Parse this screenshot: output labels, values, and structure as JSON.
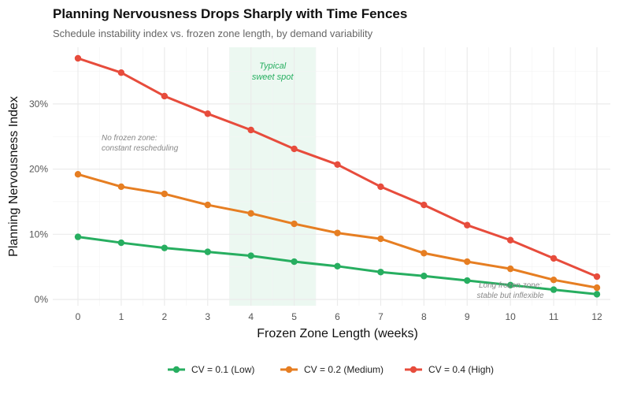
{
  "chart_data": {
    "type": "line",
    "title": "Planning Nervousness Drops Sharply with Time Fences",
    "subtitle": "Schedule instability index vs. frozen zone length, by demand variability",
    "xlabel": "Frozen Zone Length (weeks)",
    "ylabel": "Planning Nervousness Index",
    "x": [
      0,
      1,
      2,
      3,
      4,
      5,
      6,
      7,
      8,
      9,
      10,
      11,
      12
    ],
    "xlim": [
      0,
      12
    ],
    "ylim": [
      0,
      38
    ],
    "yticks": [
      0,
      10,
      20,
      30
    ],
    "ytick_labels": [
      "0%",
      "10%",
      "20%",
      "30%"
    ],
    "xtick_labels": [
      "0",
      "1",
      "2",
      "3",
      "4",
      "5",
      "6",
      "7",
      "8",
      "9",
      "10",
      "11",
      "12"
    ],
    "grid": true,
    "legend_position": "bottom",
    "series": [
      {
        "name": "CV = 0.1 (Low)",
        "color": "#27ae60",
        "values": [
          9.6,
          8.7,
          7.9,
          7.3,
          6.7,
          5.8,
          5.1,
          4.2,
          3.6,
          2.9,
          2.2,
          1.5,
          0.8
        ]
      },
      {
        "name": "CV = 0.2 (Medium)",
        "color": "#e67e22",
        "values": [
          19.2,
          17.3,
          16.2,
          14.5,
          13.2,
          11.6,
          10.2,
          9.3,
          7.1,
          5.8,
          4.7,
          3.0,
          1.8
        ]
      },
      {
        "name": "CV = 0.4 (High)",
        "color": "#e74c3c",
        "values": [
          37.0,
          34.8,
          31.2,
          28.5,
          26.0,
          23.1,
          20.7,
          17.3,
          14.5,
          11.4,
          9.1,
          6.3,
          3.5
        ]
      }
    ],
    "shaded_region": {
      "x_range": [
        3.5,
        5.5
      ],
      "color": "#27ae60",
      "label_line1": "Typical",
      "label_line2": "sweet spot"
    },
    "annotations": [
      {
        "line1": "No frozen zone:",
        "line2": "constant rescheduling"
      },
      {
        "line1": "Long frozen zone:",
        "line2": "stable but inflexible"
      }
    ]
  }
}
